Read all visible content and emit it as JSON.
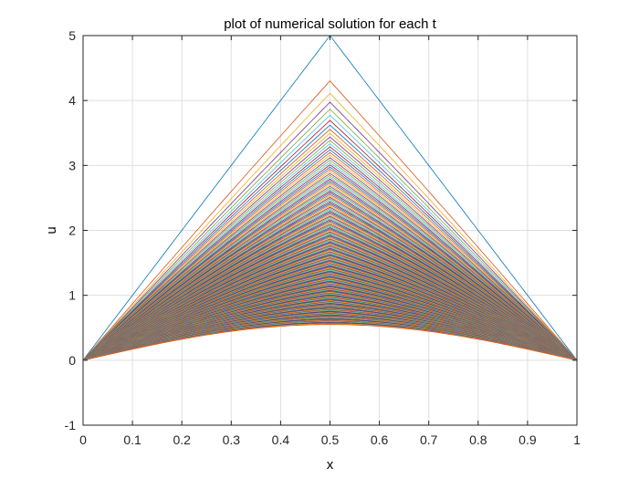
{
  "chart_data": {
    "type": "line",
    "title": "plot of numerical solution for each t",
    "xlabel": "x",
    "ylabel": "u",
    "xlim": [
      0,
      1
    ],
    "ylim": [
      -1,
      5
    ],
    "xticks": [
      0,
      0.1,
      0.2,
      0.3,
      0.4,
      0.5,
      0.6,
      0.7,
      0.8,
      0.9,
      1
    ],
    "xtick_labels": [
      "0",
      "0.1",
      "0.2",
      "0.3",
      "0.4",
      "0.5",
      "0.6",
      "0.7",
      "0.8",
      "0.9",
      "1"
    ],
    "yticks": [
      -1,
      0,
      1,
      2,
      3,
      4,
      5
    ],
    "ytick_labels": [
      "-1",
      "0",
      "1",
      "2",
      "3",
      "4",
      "5"
    ],
    "grid": true,
    "legend": "none",
    "series_description_count": 200,
    "x": [
      0,
      0.1,
      0.2,
      0.3,
      0.4,
      0.5,
      0.6,
      0.7,
      0.8,
      0.9,
      1
    ],
    "series": [
      {
        "values": [
          0,
          1,
          2,
          3,
          4,
          5,
          4,
          3,
          2,
          1,
          0
        ]
      },
      {
        "values": [
          0,
          0.17,
          0.32,
          0.44,
          0.52,
          0.55,
          0.52,
          0.44,
          0.32,
          0.17,
          0
        ]
      }
    ],
    "colors": [
      "#0072bd",
      "#d95319",
      "#edb120",
      "#7e2f8e",
      "#77ac30",
      "#4dbeee",
      "#a2142f"
    ]
  }
}
